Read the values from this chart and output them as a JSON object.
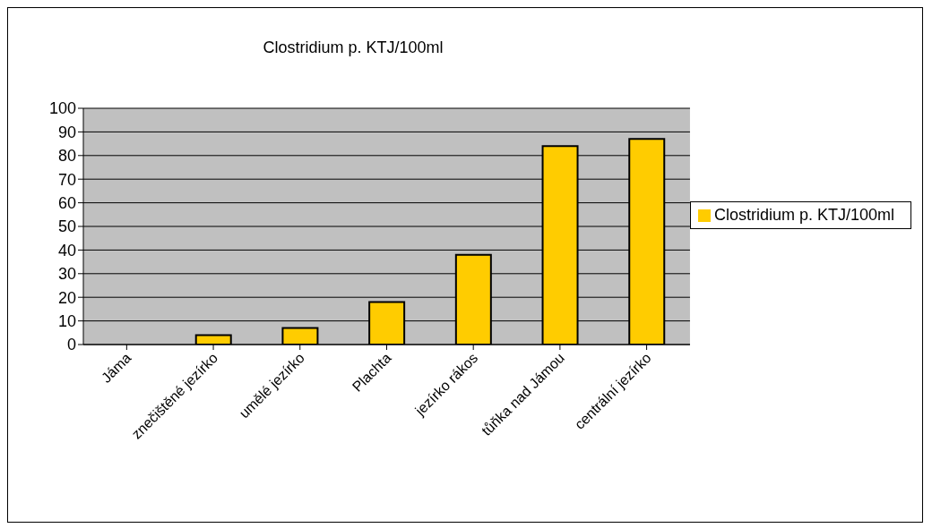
{
  "chart_data": {
    "type": "bar",
    "title": "Clostridium p. KTJ/100ml",
    "categories": [
      "Jáma",
      "znečištěné jezírko",
      "umělé jezírko",
      "Plachta",
      "jezírko rákos",
      "tůňka nad Jámou",
      "centrální jezírko"
    ],
    "series": [
      {
        "name": "Clostridium p. KTJ/100ml",
        "color": "#ffcc00",
        "values": [
          0,
          4,
          7,
          18,
          38,
          84,
          87
        ]
      }
    ],
    "ylim": [
      0,
      100
    ],
    "yticks": [
      0,
      10,
      20,
      30,
      40,
      50,
      60,
      70,
      80,
      90,
      100
    ],
    "grid": "y",
    "legend": "right"
  }
}
